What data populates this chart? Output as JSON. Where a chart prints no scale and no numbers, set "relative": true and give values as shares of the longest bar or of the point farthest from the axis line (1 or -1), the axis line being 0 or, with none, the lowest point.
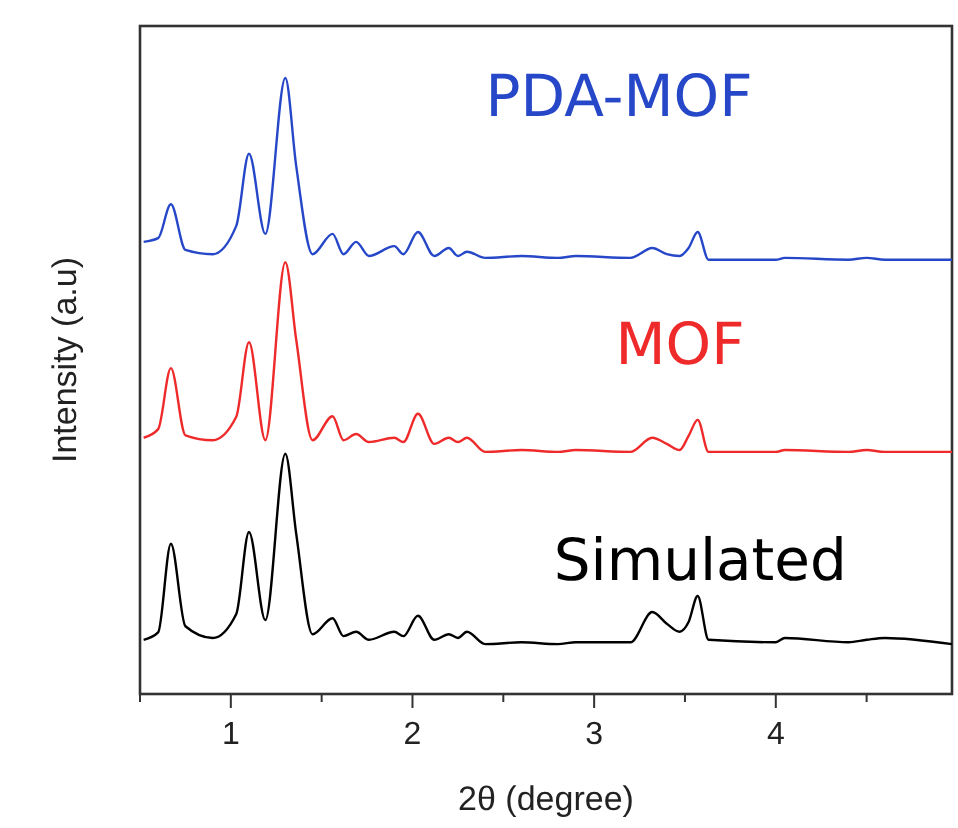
{
  "chart_data": {
    "type": "line",
    "relative": true,
    "xlabel": "2θ (degree)",
    "ylabel": "Intensity (a.u)",
    "xlim": [
      0.5,
      4.97
    ],
    "xticks": [
      {
        "value": 0.5,
        "label": null
      },
      1,
      {
        "value": 1.5,
        "label": null
      },
      2,
      {
        "value": 2.5,
        "label": null
      },
      3,
      {
        "value": 3.5,
        "label": null
      },
      4,
      {
        "value": 4.5,
        "label": null
      }
    ],
    "x": [
      0.52,
      0.6,
      0.67,
      0.75,
      0.9,
      1.03,
      1.1,
      1.19,
      1.3,
      1.36,
      1.45,
      1.56,
      1.62,
      1.69,
      1.76,
      1.9,
      1.95,
      2.03,
      2.12,
      2.2,
      2.25,
      2.3,
      2.4,
      2.6,
      2.8,
      2.9,
      3.2,
      3.32,
      3.4,
      3.47,
      3.52,
      3.57,
      3.63,
      4.0,
      4.05,
      4.4,
      4.5,
      4.6,
      4.97
    ],
    "series": [
      {
        "name": "PDA-MOF",
        "color": "#2648c8",
        "values": [
          0.734,
          0.74,
          0.795,
          0.721,
          0.714,
          0.76,
          0.877,
          0.747,
          1,
          0.857,
          0.714,
          0.747,
          0.714,
          0.734,
          0.711,
          0.727,
          0.714,
          0.75,
          0.711,
          0.724,
          0.711,
          0.718,
          0.708,
          0.711,
          0.708,
          0.711,
          0.708,
          0.724,
          0.714,
          0.711,
          0.724,
          0.75,
          0.705,
          0.705,
          0.708,
          0.705,
          0.708,
          0.705,
          0.705
        ]
      },
      {
        "name": "MOF",
        "color": "#ee2a2a",
        "values": [
          0.416,
          0.43,
          0.529,
          0.42,
          0.412,
          0.45,
          0.571,
          0.412,
          0.701,
          0.575,
          0.412,
          0.451,
          0.412,
          0.422,
          0.409,
          0.416,
          0.409,
          0.455,
          0.406,
          0.416,
          0.409,
          0.416,
          0.393,
          0.396,
          0.393,
          0.396,
          0.393,
          0.416,
          0.406,
          0.396,
          0.419,
          0.445,
          0.393,
          0.393,
          0.396,
          0.393,
          0.396,
          0.393,
          0.393
        ]
      },
      {
        "name": "Simulated",
        "color": "#000000",
        "values": [
          0.088,
          0.1,
          0.244,
          0.11,
          0.091,
          0.13,
          0.263,
          0.12,
          0.39,
          0.26,
          0.097,
          0.123,
          0.094,
          0.101,
          0.088,
          0.101,
          0.094,
          0.127,
          0.088,
          0.097,
          0.091,
          0.101,
          0.081,
          0.084,
          0.081,
          0.084,
          0.084,
          0.133,
          0.114,
          0.101,
          0.117,
          0.159,
          0.088,
          0.084,
          0.091,
          0.084,
          0.088,
          0.091,
          0.081
        ]
      }
    ],
    "grid": false,
    "marker": "none",
    "line_style": "solid"
  }
}
